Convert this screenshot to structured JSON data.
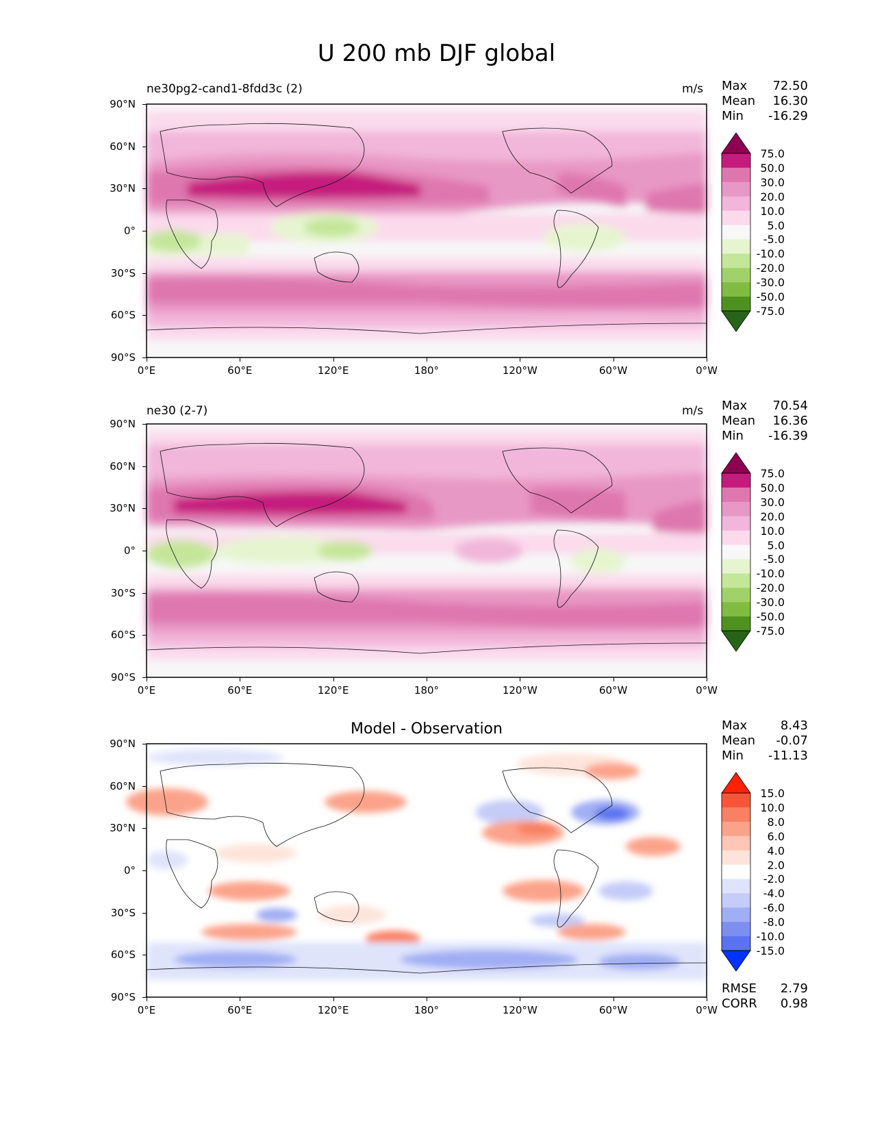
{
  "title": "U 200 mb DJF global",
  "lat_ticks": [
    "90°N",
    "60°N",
    "30°N",
    "0°",
    "30°S",
    "60°S",
    "90°S"
  ],
  "lon_ticks": [
    "0°E",
    "60°E",
    "120°E",
    "180°",
    "120°W",
    "60°W",
    "0°W"
  ],
  "stat_labels": {
    "max": "Max",
    "mean": "Mean",
    "min": "Min",
    "rmse": "RMSE",
    "corr": "CORR"
  },
  "panels": [
    {
      "left_title": "ne30pg2-cand1-8fdd3c (2)",
      "center_title": "",
      "units": "m/s",
      "max": "72.50",
      "mean": "16.30",
      "min": "-16.29",
      "colorbar_levels": [
        "75.0",
        "50.0",
        "30.0",
        "20.0",
        "10.0",
        "5.0",
        "-5.0",
        "-10.0",
        "-20.0",
        "-30.0",
        "-50.0",
        "-75.0"
      ],
      "colorbar_colors": [
        "#8e0152",
        "#c51b7d",
        "#de77ae",
        "#e898c5",
        "#f1b6da",
        "#fbdaec",
        "#f7f7f7",
        "#e6f5d0",
        "#c4e699",
        "#a1d26a",
        "#7fbc41",
        "#4d9221",
        "#276419"
      ]
    },
    {
      "left_title": "ne30 (2-7)",
      "center_title": "",
      "units": "m/s",
      "max": "70.54",
      "mean": "16.36",
      "min": "-16.39",
      "colorbar_levels": [
        "75.0",
        "50.0",
        "30.0",
        "20.0",
        "10.0",
        "5.0",
        "-5.0",
        "-10.0",
        "-20.0",
        "-30.0",
        "-50.0",
        "-75.0"
      ],
      "colorbar_colors": [
        "#8e0152",
        "#c51b7d",
        "#de77ae",
        "#e898c5",
        "#f1b6da",
        "#fbdaec",
        "#f7f7f7",
        "#e6f5d0",
        "#c4e699",
        "#a1d26a",
        "#7fbc41",
        "#4d9221",
        "#276419"
      ]
    },
    {
      "left_title": "",
      "center_title": "Model - Observation",
      "units": "",
      "max": "8.43",
      "mean": "-0.07",
      "min": "-11.13",
      "rmse": "2.79",
      "corr": "0.98",
      "colorbar_levels": [
        "15.0",
        "10.0",
        "8.0",
        "6.0",
        "4.0",
        "2.0",
        "-2.0",
        "-4.0",
        "-6.0",
        "-8.0",
        "-10.0",
        "-15.0"
      ],
      "colorbar_colors": [
        "#ff2200",
        "#f7553a",
        "#f98063",
        "#fba38a",
        "#fdc6b5",
        "#fde4da",
        "#ffffff",
        "#dfe4fb",
        "#c4ccf7",
        "#a0aef3",
        "#7c8ff0",
        "#5a73f1",
        "#0033ff"
      ]
    }
  ]
}
